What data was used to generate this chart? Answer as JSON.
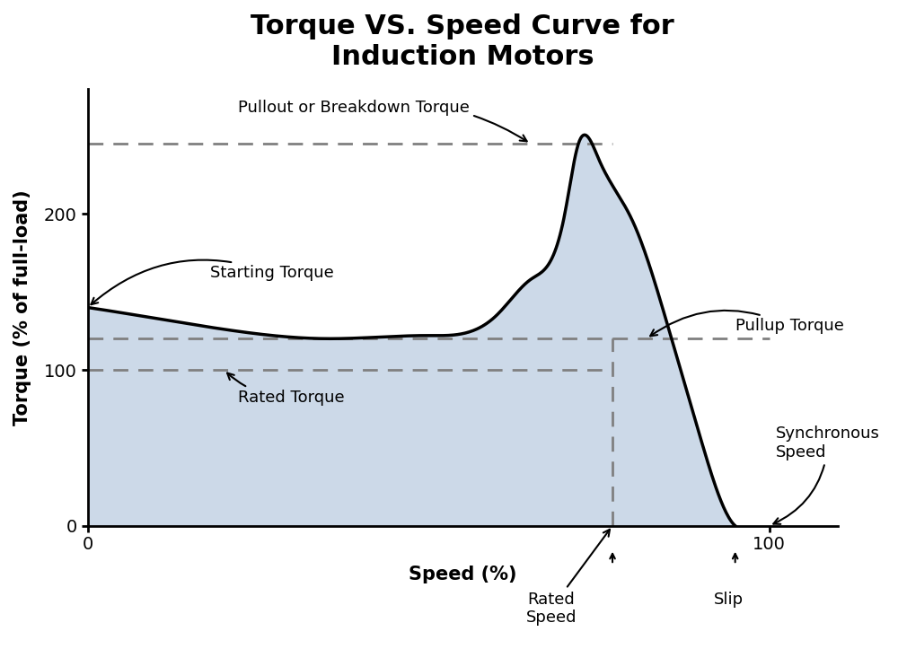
{
  "title": "Torque VS. Speed Curve for\nInduction Motors",
  "xlabel": "Speed (%)",
  "ylabel": "Torque (% of full-load)",
  "xlim": [
    0,
    110
  ],
  "ylim": [
    0,
    280
  ],
  "yticks": [
    0,
    100,
    200
  ],
  "xticks": [
    0,
    100
  ],
  "background_color": "#ffffff",
  "fill_color": "#ccd9e8",
  "curve_color": "#000000",
  "dashed_color": "#808080",
  "title_fontsize": 22,
  "label_fontsize": 15,
  "annotation_fontsize": 13,
  "pullout_torque": 245,
  "pullup_torque": 120,
  "rated_torque": 100,
  "starting_torque": 140,
  "rated_speed": 77,
  "sync_speed": 95
}
